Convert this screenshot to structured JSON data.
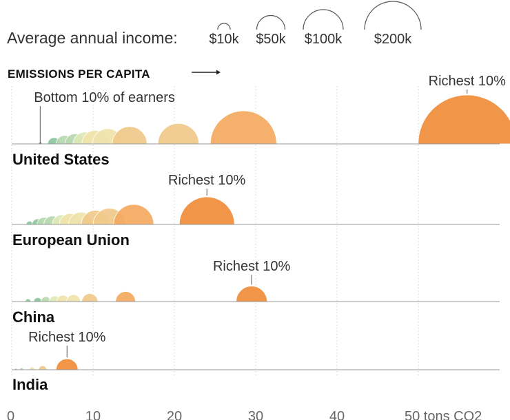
{
  "chart_data": {
    "type": "semicircle-bubble",
    "metric_label": "EMISSIONS PER CAPITA",
    "x_axis": {
      "ticks": [
        {
          "value": 0,
          "label": "0"
        },
        {
          "value": 10,
          "label": "10"
        },
        {
          "value": 20,
          "label": "20"
        },
        {
          "value": 30,
          "label": "30"
        },
        {
          "value": 40,
          "label": "40"
        },
        {
          "value": 50,
          "label": "50 tons CO2"
        }
      ],
      "range": [
        0,
        60
      ],
      "grid": true
    },
    "size_legend": {
      "title": "Average annual income:",
      "items": [
        {
          "income_k": 10,
          "label": "$10k"
        },
        {
          "income_k": 50,
          "label": "$50k"
        },
        {
          "income_k": 100,
          "label": "$100k"
        },
        {
          "income_k": 200,
          "label": "$200k"
        }
      ]
    },
    "color_scale": [
      "#8cc5a0",
      "#b7d9b0",
      "#dde8b5",
      "#efe3aa",
      "#f0c98a",
      "#f4a95f",
      "#f08c3a"
    ],
    "series": [
      {
        "name": "United States",
        "deciles": [
          {
            "emissions": 3.5,
            "income_k": 1
          },
          {
            "emissions": 5.2,
            "income_k": 10
          },
          {
            "emissions": 6.5,
            "income_k": 18
          },
          {
            "emissions": 7.8,
            "income_k": 26
          },
          {
            "emissions": 9.0,
            "income_k": 35
          },
          {
            "emissions": 10.3,
            "income_k": 46
          },
          {
            "emissions": 11.8,
            "income_k": 58
          },
          {
            "emissions": 14.5,
            "income_k": 75
          },
          {
            "emissions": 20.5,
            "income_k": 105
          },
          {
            "emissions": 28.5,
            "income_k": 275
          }
        ],
        "rich_emissions": 56,
        "rich_income_k": 600,
        "labels": [
          {
            "text": "Bottom 10% of earners",
            "decile": 0
          },
          {
            "text": "Richest 10%",
            "decile": "rich"
          }
        ]
      },
      {
        "name": "European Union",
        "deciles": [
          {
            "emissions": 2.2,
            "income_k": 3
          },
          {
            "emissions": 3.2,
            "income_k": 8
          },
          {
            "emissions": 4.0,
            "income_k": 13
          },
          {
            "emissions": 5.0,
            "income_k": 18
          },
          {
            "emissions": 6.2,
            "income_k": 24
          },
          {
            "emissions": 7.2,
            "income_k": 30
          },
          {
            "emissions": 8.5,
            "income_k": 38
          },
          {
            "emissions": 10.3,
            "income_k": 50
          },
          {
            "emissions": 12.0,
            "income_k": 65
          },
          {
            "emissions": 15.0,
            "income_k": 100
          }
        ],
        "rich_emissions": 24,
        "rich_income_k": 190,
        "labels": [
          {
            "text": "Richest 10%",
            "decile": "rich"
          }
        ]
      },
      {
        "name": "China",
        "deciles": [
          {
            "emissions": 2.0,
            "income_k": 2
          },
          {
            "emissions": 3.2,
            "income_k": 4
          },
          {
            "emissions": 4.2,
            "income_k": 6
          },
          {
            "emissions": 5.3,
            "income_k": 8
          },
          {
            "emissions": 6.3,
            "income_k": 10
          },
          {
            "emissions": 7.6,
            "income_k": 12
          },
          {
            "emissions": 9.6,
            "income_k": 16
          },
          {
            "emissions": 14.0,
            "income_k": 25
          }
        ],
        "rich_emissions": 29.5,
        "rich_income_k": 60,
        "labels": [
          {
            "text": "Richest 10%",
            "decile": "rich"
          }
        ]
      },
      {
        "name": "India",
        "deciles": [
          {
            "emissions": 0.5,
            "income_k": 0.5
          },
          {
            "emissions": 1.2,
            "income_k": 1
          },
          {
            "emissions": 2.5,
            "income_k": 2
          },
          {
            "emissions": 3.8,
            "income_k": 4
          }
        ],
        "rich_emissions": 6.8,
        "rich_income_k": 30,
        "labels": [
          {
            "text": "Richest 10%",
            "decile": "rich"
          }
        ]
      }
    ]
  }
}
